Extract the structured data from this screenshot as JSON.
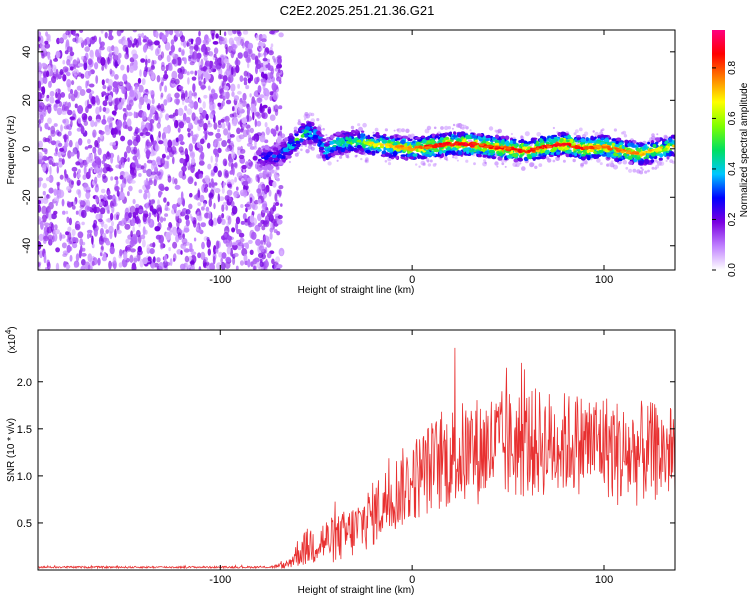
{
  "figure": {
    "title": "C2E2.2025.251.21.36.G21"
  },
  "chart_data": [
    {
      "type": "heatmap",
      "title": "C2E2.2025.251.21.36.G21",
      "xlabel": "Height of straight line (km)",
      "ylabel": "Frequency (Hz)",
      "xlim": [
        -195,
        137
      ],
      "ylim": [
        -50,
        49
      ],
      "xticks": [
        -100,
        0,
        100
      ],
      "yticks": [
        -40,
        -20,
        0,
        20,
        40
      ],
      "colorbar": {
        "label": "Normalized spectral amplitude",
        "range": [
          0,
          0.95
        ],
        "ticks": [
          0.0,
          0.2,
          0.4,
          0.6,
          0.8
        ],
        "tick_labels": [
          "0.0",
          "0.2",
          "0.4",
          "0.6",
          "0.8"
        ],
        "colormap": [
          "#ffffff",
          "#c080ff",
          "#7a00e0",
          "#0000ff",
          "#00c8ff",
          "#00e060",
          "#80ff00",
          "#ffff00",
          "#ff8000",
          "#ff0000",
          "#ff0080"
        ]
      },
      "noise_region": {
        "x_range": [
          -195,
          -72
        ],
        "level": 0.15
      },
      "signal_track": {
        "x": [
          -80,
          -70,
          -65,
          -60,
          -55,
          -50,
          -45,
          -40,
          -30,
          -20,
          -10,
          0,
          10,
          20,
          30,
          40,
          50,
          60,
          70,
          80,
          90,
          100,
          110,
          120,
          130,
          137
        ],
        "freq": [
          -4,
          -3,
          0,
          4,
          7,
          6,
          -1,
          2,
          3,
          2,
          1,
          0,
          1,
          2,
          2,
          1,
          0,
          -1,
          1,
          2,
          0,
          1,
          -1,
          -2,
          0,
          1
        ],
        "peak_amplitude": [
          0.3,
          0.4,
          0.5,
          0.55,
          0.55,
          0.45,
          0.5,
          0.55,
          0.6,
          0.7,
          0.75,
          0.8,
          0.85,
          0.9,
          0.9,
          0.85,
          0.85,
          0.9,
          0.85,
          0.9,
          0.85,
          0.8,
          0.8,
          0.75,
          0.7,
          0.7
        ]
      }
    },
    {
      "type": "line",
      "xlabel": "Height of straight line (km)",
      "ylabel": "SNR (10 * v/v)",
      "yscale_label": "(x10",
      "yscale_exponent": "4",
      "xlim": [
        -195,
        137
      ],
      "ylim": [
        0,
        2.55
      ],
      "xticks": [
        -100,
        0,
        100
      ],
      "yticks": [
        0.5,
        1.0,
        1.5,
        2.0
      ],
      "ytick_labels": [
        "0.5",
        "1.0",
        "1.5",
        "2.0"
      ],
      "series": [
        {
          "name": "SNR",
          "color": "#e83030",
          "envelope": {
            "x": [
              -195,
              -75,
              -65,
              -60,
              -50,
              -40,
              -30,
              -20,
              -10,
              0,
              10,
              20,
              40,
              60,
              80,
              100,
              110,
              120,
              137
            ],
            "mean": [
              0.03,
              0.03,
              0.05,
              0.18,
              0.3,
              0.32,
              0.42,
              0.6,
              0.8,
              0.95,
              1.1,
              1.2,
              1.3,
              1.35,
              1.35,
              1.35,
              1.2,
              1.25,
              1.25
            ],
            "spread": [
              0.01,
              0.01,
              0.04,
              0.15,
              0.25,
              0.25,
              0.3,
              0.35,
              0.4,
              0.45,
              0.5,
              0.55,
              0.6,
              0.6,
              0.55,
              0.55,
              0.6,
              0.55,
              0.5
            ]
          }
        }
      ]
    }
  ]
}
